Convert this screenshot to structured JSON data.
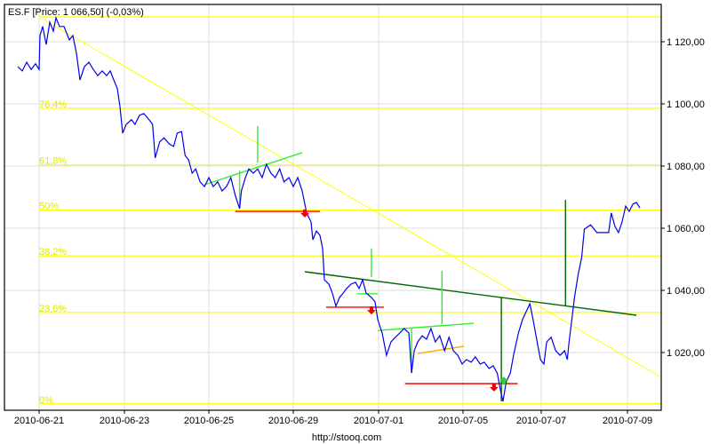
{
  "chart_data": {
    "type": "line",
    "title": "ES.F [Price: 1 066,50] (-0,03%)",
    "footer": "http://stooq.com",
    "xlabel": "",
    "ylabel": "",
    "ylim": [
      1001.5,
      1132
    ],
    "grid": true,
    "x_ticks": [
      "2010-06-21",
      "2010-06-23",
      "2010-06-25",
      "2010-06-29",
      "2010-07-01",
      "2010-07-05",
      "2010-07-07",
      "2010-07-09"
    ],
    "y_ticks": [
      1020,
      1040,
      1060,
      1080,
      1100,
      1120
    ],
    "y_tick_labels": [
      "1 020,00",
      "1 040,00",
      "1 060,00",
      "1 080,00",
      "1 100,00",
      "1 120,00"
    ],
    "colors": {
      "price": "#0000ee",
      "fib": "#ffff00",
      "fib_label": "#e6e600",
      "trend": "#ffff00",
      "resistance": "#006600",
      "channel": "#33ee33",
      "support": "#ff0000",
      "orange": "#ffaa00",
      "grid": "#dddddd"
    },
    "fibonacci": {
      "high": 1128.0,
      "low": 1003.5,
      "levels": [
        {
          "label": "0%",
          "value": 1003.5
        },
        {
          "label": "23,6%",
          "value": 1032.9
        },
        {
          "label": "38,2%",
          "value": 1051.1
        },
        {
          "label": "50%",
          "value": 1065.8
        },
        {
          "label": "61,8%",
          "value": 1080.4
        },
        {
          "label": "76,4%",
          "value": 1098.6
        },
        {
          "label": "",
          "value": 1128.0
        }
      ]
    },
    "series": [
      {
        "points": [
          [
            "2010-06-20 12:00",
            1112.0
          ],
          [
            "2010-06-20 14:30",
            1110.6
          ],
          [
            "2010-06-20 17:00",
            1113.4
          ],
          [
            "2010-06-20 19:30",
            1111.1
          ],
          [
            "2010-06-20 22:00",
            1112.9
          ],
          [
            "2010-06-21 00:00",
            1111.1
          ],
          [
            "2010-06-21 00:30",
            1122.0
          ],
          [
            "2010-06-21 02:00",
            1124.9
          ],
          [
            "2010-06-21 04:00",
            1119.1
          ],
          [
            "2010-06-21 06:00",
            1126.3
          ],
          [
            "2010-06-21 08:00",
            1123.4
          ],
          [
            "2010-06-21 09:30",
            1127.7
          ],
          [
            "2010-06-21 11:30",
            1124.9
          ],
          [
            "2010-06-21 14:00",
            1124.9
          ],
          [
            "2010-06-21 17:00",
            1120.6
          ],
          [
            "2010-06-21 19:00",
            1122.0
          ],
          [
            "2010-06-21 21:00",
            1116.3
          ],
          [
            "2010-06-21 23:00",
            1107.7
          ],
          [
            "2010-06-22 01:30",
            1112.0
          ],
          [
            "2010-06-22 04:00",
            1113.4
          ],
          [
            "2010-06-22 06:30",
            1111.1
          ],
          [
            "2010-06-22 09:00",
            1109.1
          ],
          [
            "2010-06-22 11:30",
            1110.6
          ],
          [
            "2010-06-22 14:00",
            1109.1
          ],
          [
            "2010-06-22 16:00",
            1110.6
          ],
          [
            "2010-06-22 18:00",
            1107.7
          ],
          [
            "2010-06-22 20:00",
            1104.9
          ],
          [
            "2010-06-22 21:30",
            1099.1
          ],
          [
            "2010-06-22 23:00",
            1090.6
          ],
          [
            "2010-06-23 01:00",
            1093.4
          ],
          [
            "2010-06-23 04:00",
            1094.9
          ],
          [
            "2010-06-23 06:00",
            1093.4
          ],
          [
            "2010-06-23 08:30",
            1096.3
          ],
          [
            "2010-06-23 11:00",
            1096.9
          ],
          [
            "2010-06-23 14:00",
            1094.9
          ],
          [
            "2010-06-23 16:00",
            1093.4
          ],
          [
            "2010-06-23 17:30",
            1082.6
          ],
          [
            "2010-06-23 20:00",
            1087.7
          ],
          [
            "2010-06-23 22:30",
            1089.1
          ],
          [
            "2010-06-24 01:30",
            1087.1
          ],
          [
            "2010-06-24 04:00",
            1086.3
          ],
          [
            "2010-06-24 06:00",
            1090.6
          ],
          [
            "2010-06-24 08:30",
            1091.1
          ],
          [
            "2010-06-24 10:30",
            1083.4
          ],
          [
            "2010-06-24 12:30",
            1082.0
          ],
          [
            "2010-06-24 14:30",
            1077.7
          ],
          [
            "2010-06-24 16:30",
            1079.1
          ],
          [
            "2010-06-24 19:00",
            1074.9
          ],
          [
            "2010-06-24 21:30",
            1073.4
          ],
          [
            "2010-06-25 00:00",
            1076.3
          ],
          [
            "2010-06-25 05:00",
            1073.4
          ],
          [
            "2010-06-25 10:00",
            1074.9
          ],
          [
            "2010-06-25 15:00",
            1072.0
          ],
          [
            "2010-06-25 20:00",
            1073.4
          ],
          [
            "2010-06-26 01:00",
            1076.3
          ],
          [
            "2010-06-26 06:00",
            1070.6
          ],
          [
            "2010-06-26 11:00",
            1066.3
          ],
          [
            "2010-06-26 13:00",
            1072.0
          ],
          [
            "2010-06-26 17:30",
            1076.3
          ],
          [
            "2010-06-26 21:30",
            1079.1
          ],
          [
            "2010-06-27 02:30",
            1077.7
          ],
          [
            "2010-06-27 07:30",
            1079.1
          ],
          [
            "2010-06-27 12:30",
            1076.3
          ],
          [
            "2010-06-27 17:30",
            1080.6
          ],
          [
            "2010-06-27 22:30",
            1077.7
          ],
          [
            "2010-06-28 03:30",
            1076.3
          ],
          [
            "2010-06-28 08:30",
            1079.1
          ],
          [
            "2010-06-28 13:30",
            1074.9
          ],
          [
            "2010-06-28 19:00",
            1076.3
          ],
          [
            "2010-06-29 00:00",
            1073.4
          ],
          [
            "2010-06-29 02:30",
            1076.3
          ],
          [
            "2010-06-29 05:00",
            1072.0
          ],
          [
            "2010-06-29 07:30",
            1064.9
          ],
          [
            "2010-06-29 10:00",
            1062.0
          ],
          [
            "2010-06-29 11:00",
            1056.3
          ],
          [
            "2010-06-29 13:00",
            1059.1
          ],
          [
            "2010-06-29 15:00",
            1057.7
          ],
          [
            "2010-06-29 16:30",
            1053.4
          ],
          [
            "2010-06-29 17:30",
            1043.4
          ],
          [
            "2010-06-29 20:00",
            1042.0
          ],
          [
            "2010-06-29 22:00",
            1039.1
          ],
          [
            "2010-06-30 00:00",
            1034.9
          ],
          [
            "2010-06-30 02:00",
            1037.7
          ],
          [
            "2010-06-30 04:00",
            1039.1
          ],
          [
            "2010-06-30 06:00",
            1040.6
          ],
          [
            "2010-06-30 08:30",
            1042.0
          ],
          [
            "2010-06-30 11:00",
            1042.6
          ],
          [
            "2010-06-30 13:00",
            1040.6
          ],
          [
            "2010-06-30 15:00",
            1043.4
          ],
          [
            "2010-06-30 17:00",
            1039.1
          ],
          [
            "2010-06-30 20:00",
            1037.7
          ],
          [
            "2010-06-30 22:00",
            1036.3
          ],
          [
            "2010-06-30 23:30",
            1030.6
          ],
          [
            "2010-07-01 04:00",
            1026.3
          ],
          [
            "2010-07-01 09:00",
            1019.1
          ],
          [
            "2010-07-01 14:00",
            1023.4
          ],
          [
            "2010-07-01 19:00",
            1024.9
          ],
          [
            "2010-07-02 00:00",
            1026.3
          ],
          [
            "2010-07-02 05:00",
            1027.7
          ],
          [
            "2010-07-02 10:30",
            1026.3
          ],
          [
            "2010-07-02 13:30",
            1013.4
          ],
          [
            "2010-07-02 16:30",
            1020.6
          ],
          [
            "2010-07-02 20:30",
            1023.4
          ],
          [
            "2010-07-03 01:30",
            1025.4
          ],
          [
            "2010-07-03 06:30",
            1024.3
          ],
          [
            "2010-07-03 11:30",
            1027.7
          ],
          [
            "2010-07-03 16:30",
            1023.4
          ],
          [
            "2010-07-03 21:30",
            1025.4
          ],
          [
            "2010-07-04 03:00",
            1020.6
          ],
          [
            "2010-07-04 08:00",
            1024.9
          ],
          [
            "2010-07-04 13:00",
            1020.6
          ],
          [
            "2010-07-04 18:00",
            1019.1
          ],
          [
            "2010-07-04 23:00",
            1016.3
          ],
          [
            "2010-07-05 02:00",
            1017.7
          ],
          [
            "2010-07-05 05:00",
            1016.9
          ],
          [
            "2010-07-05 07:30",
            1018.6
          ],
          [
            "2010-07-05 10:30",
            1016.3
          ],
          [
            "2010-07-05 13:00",
            1016.9
          ],
          [
            "2010-07-05 16:00",
            1014.9
          ],
          [
            "2010-07-05 18:30",
            1015.7
          ],
          [
            "2010-07-05 21:00",
            1013.4
          ],
          [
            "2010-07-05 23:00",
            1007.7
          ],
          [
            "2010-07-06 00:30",
            1004.3
          ],
          [
            "2010-07-06 02:30",
            1010.6
          ],
          [
            "2010-07-06 05:00",
            1013.4
          ],
          [
            "2010-07-06 07:00",
            1019.1
          ],
          [
            "2010-07-06 10:00",
            1026.3
          ],
          [
            "2010-07-06 12:30",
            1030.6
          ],
          [
            "2010-07-06 15:30",
            1034.0
          ],
          [
            "2010-07-06 17:00",
            1035.7
          ],
          [
            "2010-07-06 19:00",
            1030.6
          ],
          [
            "2010-07-06 21:30",
            1023.4
          ],
          [
            "2010-07-06 23:30",
            1017.7
          ],
          [
            "2010-07-07 01:30",
            1016.3
          ],
          [
            "2010-07-07 03:00",
            1023.4
          ],
          [
            "2010-07-07 05:30",
            1024.9
          ],
          [
            "2010-07-07 08:00",
            1020.6
          ],
          [
            "2010-07-07 10:30",
            1019.1
          ],
          [
            "2010-07-07 13:00",
            1020.6
          ],
          [
            "2010-07-07 14:30",
            1017.7
          ],
          [
            "2010-07-07 15:30",
            1023.4
          ],
          [
            "2010-07-07 17:00",
            1030.6
          ],
          [
            "2010-07-07 18:30",
            1037.7
          ],
          [
            "2010-07-07 20:30",
            1044.9
          ],
          [
            "2010-07-07 22:30",
            1050.6
          ],
          [
            "2010-07-08 00:00",
            1059.7
          ],
          [
            "2010-07-08 03:30",
            1061.1
          ],
          [
            "2010-07-08 07:00",
            1058.6
          ],
          [
            "2010-07-08 10:00",
            1058.6
          ],
          [
            "2010-07-08 13:30",
            1058.6
          ],
          [
            "2010-07-08 15:00",
            1064.9
          ],
          [
            "2010-07-08 17:00",
            1060.6
          ],
          [
            "2010-07-08 19:00",
            1058.6
          ],
          [
            "2010-07-08 21:00",
            1062.0
          ],
          [
            "2010-07-08 23:00",
            1067.1
          ],
          [
            "2010-07-09 01:00",
            1065.4
          ],
          [
            "2010-07-09 03:00",
            1067.7
          ],
          [
            "2010-07-09 05:00",
            1068.3
          ],
          [
            "2010-07-09 07:00",
            1066.5
          ]
        ]
      }
    ],
    "annotations": {
      "lines": [
        {
          "kind": "trend",
          "color": "trend",
          "from": [
            "2010-06-21 00:00",
            1128.0
          ],
          "to": [
            "2010-07-09 19:00",
            1012.0
          ]
        },
        {
          "kind": "resistance",
          "color": "resistance",
          "from": [
            "2010-06-29 06:30",
            1046.0
          ],
          "to": [
            "2010-07-09 05:00",
            1032.0
          ]
        },
        {
          "kind": "channel",
          "color": "channel",
          "from": [
            "2010-06-24 21:30",
            1074.0
          ],
          "to": [
            "2010-06-29 05:00",
            1084.3
          ]
        },
        {
          "kind": "channel",
          "color": "channel",
          "from": [
            "2010-06-30 23:30",
            1027.1
          ],
          "to": [
            "2010-07-05 06:30",
            1029.4
          ]
        },
        {
          "kind": "channel",
          "color": "channel",
          "from": [
            "2010-06-30 12:00",
            1038.9
          ],
          "to": [
            "2010-06-30 23:30",
            1038.9
          ]
        },
        {
          "kind": "channel",
          "color": "orange",
          "from": [
            "2010-07-02 20:30",
            1019.7
          ],
          "to": [
            "2010-07-05 00:30",
            1022.0
          ]
        },
        {
          "kind": "support",
          "color": "support",
          "from": [
            "2010-06-26 06:00",
            1065.4
          ],
          "to": [
            "2010-06-29 15:00",
            1065.4
          ]
        },
        {
          "kind": "support",
          "color": "support",
          "from": [
            "2010-06-29 18:30",
            1034.6
          ],
          "to": [
            "2010-07-01 06:00",
            1034.6
          ]
        },
        {
          "kind": "support",
          "color": "support",
          "from": [
            "2010-07-02 06:00",
            1010.0
          ],
          "to": [
            "2010-07-06 09:30",
            1010.0
          ]
        },
        {
          "kind": "spike",
          "color": "channel",
          "from": [
            "2010-06-27 07:30",
            1092.9
          ],
          "to": [
            "2010-06-27 07:30",
            1081.1
          ]
        },
        {
          "kind": "spike",
          "color": "channel",
          "from": [
            "2010-06-26 11:00",
            1078.6
          ],
          "to": [
            "2010-06-26 11:00",
            1066.3
          ]
        },
        {
          "kind": "spike",
          "color": "channel",
          "from": [
            "2010-06-30 20:00",
            1053.4
          ],
          "to": [
            "2010-06-30 20:00",
            1044.3
          ]
        },
        {
          "kind": "spike",
          "color": "channel",
          "from": [
            "2010-07-04 00:00",
            1046.3
          ],
          "to": [
            "2010-07-04 00:00",
            1029.1
          ]
        },
        {
          "kind": "spike",
          "color": "channel",
          "from": [
            "2010-07-02 13:30",
            1027.7
          ],
          "to": [
            "2010-07-02 13:30",
            1013.4
          ]
        },
        {
          "kind": "spike",
          "color": "resistance",
          "from": [
            "2010-07-05 23:30",
            1037.7
          ],
          "to": [
            "2010-07-05 23:30",
            1004.3
          ]
        },
        {
          "kind": "spike",
          "color": "resistance",
          "from": [
            "2010-07-07 13:30",
            1069.1
          ],
          "to": [
            "2010-07-07 13:30",
            1034.9
          ]
        }
      ],
      "signals": [
        {
          "type": "sell",
          "at": [
            "2010-06-29 06:30",
            1064.6
          ]
        },
        {
          "type": "sell",
          "at": [
            "2010-06-30 20:00",
            1033.4
          ]
        },
        {
          "type": "sell",
          "at": [
            "2010-07-05 19:00",
            1008.6
          ]
        },
        {
          "type": "buy",
          "at": [
            "2010-07-06 01:00",
            1011.1
          ]
        }
      ]
    }
  }
}
